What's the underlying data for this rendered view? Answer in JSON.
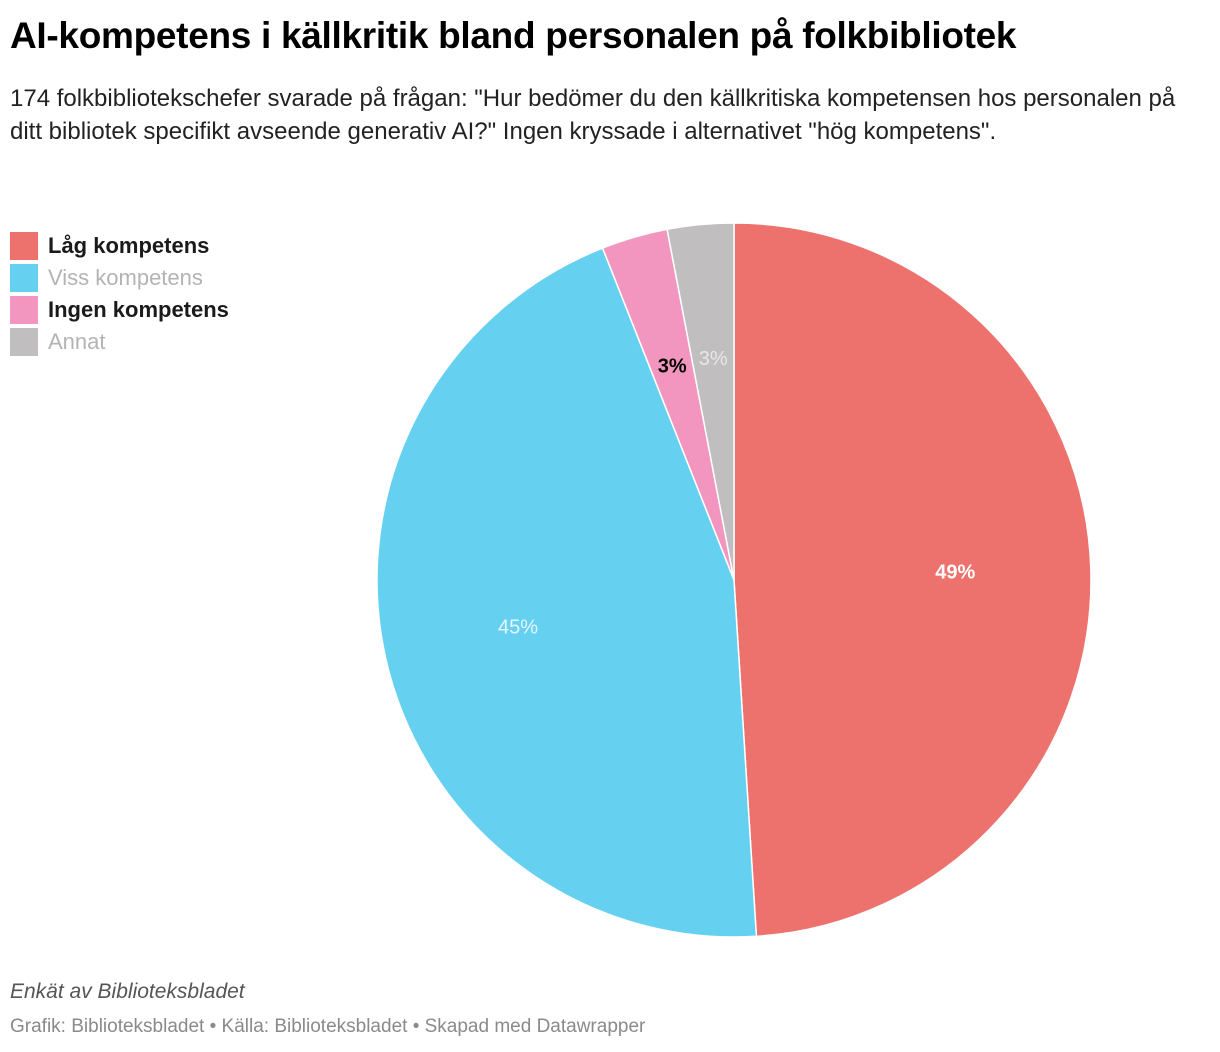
{
  "title": "AI-kompetens i källkritik bland personalen på folkbibliotek",
  "subtitle": "174 folkbibliotekschefer svarade på frågan: \"Hur bedömer du den källkritiska kompetensen hos personalen på ditt bibliotek specifikt avseende generativ AI?\" Ingen kryssade i alternativet \"hög kompetens\".",
  "note": "Enkät av Biblioteksbladet",
  "footer": "Grafik: Biblioteksbladet • Källa: Biblioteksbladet • Skapad med Datawrapper",
  "chart_data": {
    "type": "pie",
    "title": "AI-kompetens i källkritik bland personalen på folkbibliotek",
    "legend_position": "top-left",
    "start_angle": "12 o'clock, clockwise",
    "slices": [
      {
        "label": "Låg kompetens",
        "value": 49,
        "value_label": "49%",
        "color": "#ed716c",
        "legend_style": "dark",
        "label_color": "#ffffff",
        "label_bold": true
      },
      {
        "label": "Viss kompetens",
        "value": 45,
        "value_label": "45%",
        "color": "#66d0f1",
        "legend_style": "light",
        "label_color": "#e6f7fd",
        "label_bold": false
      },
      {
        "label": "Ingen kompetens",
        "value": 3,
        "value_label": "3%",
        "color": "#f396bf",
        "legend_style": "dark",
        "label_color": "#000000",
        "label_bold": true
      },
      {
        "label": "Annat",
        "value": 3,
        "value_label": "3%",
        "color": "#c0bebe",
        "legend_style": "light",
        "label_color": "#e8e8e8",
        "label_bold": false
      }
    ]
  }
}
